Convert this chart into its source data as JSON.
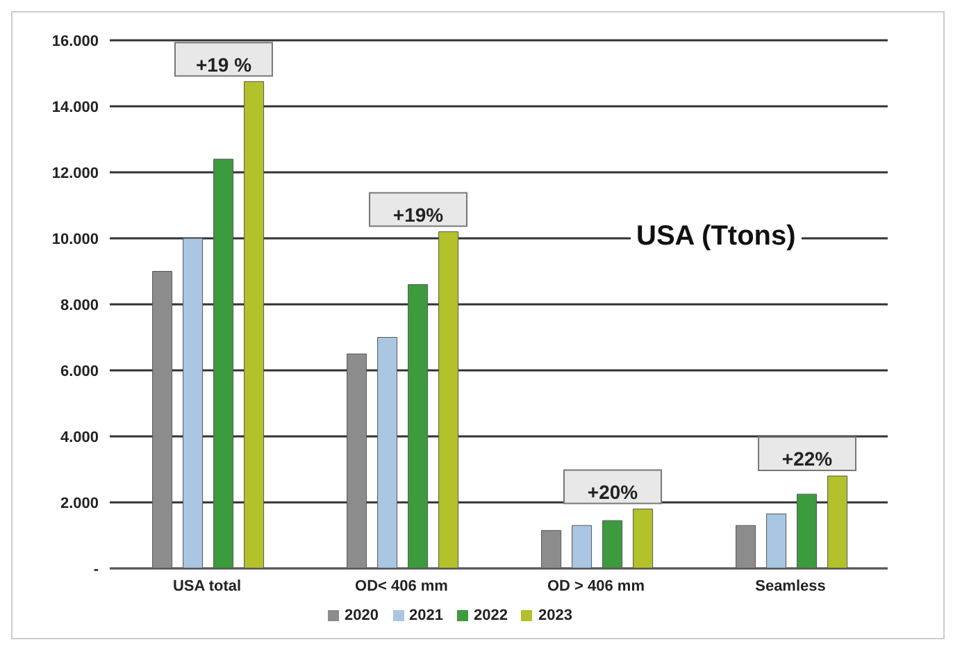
{
  "chart_data": {
    "type": "bar",
    "title": "USA (Ttons)",
    "categories": [
      "USA total",
      "OD< 406 mm",
      "OD > 406 mm",
      "Seamless"
    ],
    "series": [
      {
        "name": "2020",
        "color": "#8c8c8c",
        "values": [
          9000,
          6500,
          1150,
          1300
        ]
      },
      {
        "name": "2021",
        "color": "#a9c6e2",
        "values": [
          10000,
          7000,
          1300,
          1650
        ]
      },
      {
        "name": "2022",
        "color": "#3c9b3c",
        "values": [
          12400,
          8600,
          1450,
          2250
        ]
      },
      {
        "name": "2023",
        "color": "#b3c12a",
        "values": [
          14750,
          10200,
          1800,
          2800
        ]
      }
    ],
    "ylim": [
      0,
      16000
    ],
    "yticks": [
      {
        "value": 0,
        "label": "-"
      },
      {
        "value": 2000,
        "label": "2.000"
      },
      {
        "value": 4000,
        "label": "4.000"
      },
      {
        "value": 6000,
        "label": "6.000"
      },
      {
        "value": 8000,
        "label": "8.000"
      },
      {
        "value": 10000,
        "label": "10.000"
      },
      {
        "value": 12000,
        "label": "12.000"
      },
      {
        "value": 14000,
        "label": "14.000"
      },
      {
        "value": 16000,
        "label": "16.000"
      }
    ],
    "grid": "y",
    "legend": "bottom",
    "annotations": [
      "+19 %",
      "+19%",
      "+20%",
      "+22%"
    ]
  }
}
